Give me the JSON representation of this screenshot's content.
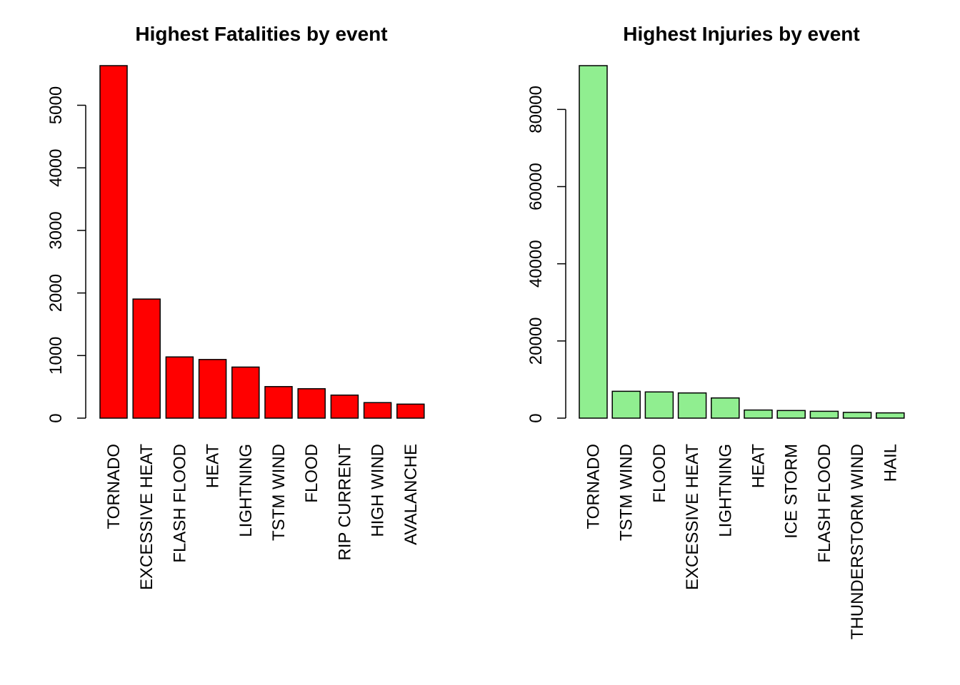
{
  "chart_data": [
    {
      "type": "bar",
      "title": "Highest Fatalities by event",
      "xlabel": "",
      "ylabel": "",
      "bar_color": "#ff0000",
      "categories": [
        "TORNADO",
        "EXCESSIVE HEAT",
        "FLASH FLOOD",
        "HEAT",
        "LIGHTNING",
        "TSTM WIND",
        "FLOOD",
        "RIP CURRENT",
        "HIGH WIND",
        "AVALANCHE"
      ],
      "values": [
        5633,
        1903,
        978,
        937,
        816,
        504,
        470,
        368,
        248,
        224
      ],
      "yticks": [
        0,
        1000,
        2000,
        3000,
        4000,
        5000
      ],
      "ylim": [
        0,
        5633
      ],
      "grid": false,
      "legend": "none"
    },
    {
      "type": "bar",
      "title": "Highest Injuries by event",
      "xlabel": "",
      "ylabel": "",
      "bar_color": "#90ee90",
      "categories": [
        "TORNADO",
        "TSTM WIND",
        "FLOOD",
        "EXCESSIVE HEAT",
        "LIGHTNING",
        "HEAT",
        "ICE STORM",
        "FLASH FLOOD",
        "THUNDERSTORM WIND",
        "HAIL"
      ],
      "values": [
        91346,
        6957,
        6789,
        6525,
        5230,
        2100,
        1975,
        1777,
        1488,
        1361
      ],
      "yticks": [
        0,
        20000,
        40000,
        60000,
        80000
      ],
      "ylim": [
        0,
        91346
      ],
      "grid": false,
      "legend": "none"
    }
  ]
}
